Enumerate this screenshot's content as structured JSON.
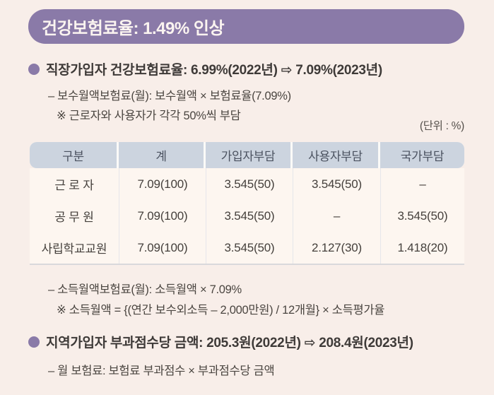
{
  "colors": {
    "page_bg": "#f8eee9",
    "accent_purple": "#8a7aa8",
    "table_header_bg": "#ccd4df",
    "table_body_bg": "#fdf6f0"
  },
  "header_badge": {
    "label": "건강보험료율: 1.49% 인상"
  },
  "section_workplace": {
    "title": "직장가입자 건강보험료율: 6.99%(2022년) ⇨ 7.09%(2023년)",
    "wage_formula": "– 보수월액보험료(월): 보수월액 × 보험료율(7.09%)",
    "wage_note": "※ 근로자와 사용자가 각각 50%씩 부담",
    "income_formula": "– 소득월액보험료(월): 소득월액 × 7.09%",
    "income_note": "※ 소득월액 = {(연간 보수외소득 – 2,000만원) / 12개월} × 소득평가율"
  },
  "table": {
    "unit_label": "(단위 : %)",
    "headers": [
      "구분",
      "계",
      "가입자부담",
      "사용자부담",
      "국가부담"
    ],
    "rows": [
      [
        "근 로 자",
        "7.09(100)",
        "3.545(50)",
        "3.545(50)",
        "–"
      ],
      [
        "공 무 원",
        "7.09(100)",
        "3.545(50)",
        "–",
        "3.545(50)"
      ],
      [
        "사립학교교원",
        "7.09(100)",
        "3.545(50)",
        "2.127(30)",
        "1.418(20)"
      ]
    ]
  },
  "section_regional": {
    "title": "지역가입자 부과점수당 금액: 205.3원(2022년) ⇨ 208.4원(2023년)",
    "monthly_formula": "– 월 보험료: 보험료 부과점수 × 부과점수당 금액"
  }
}
